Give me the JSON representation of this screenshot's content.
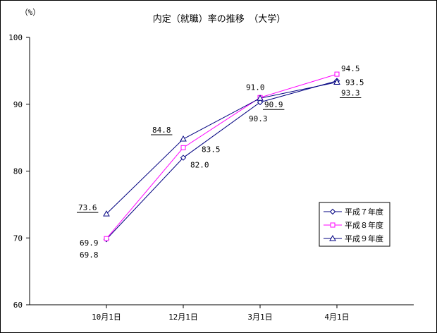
{
  "chart_data": {
    "type": "line",
    "title": "内定（就職）率の推移　（大学）",
    "ylabel": "（%）",
    "xlabel": "",
    "categories": [
      "10月1日",
      "12月1日",
      "3月1日",
      "4月1日"
    ],
    "ylim": [
      60,
      100
    ],
    "yticks": [
      "60",
      "70",
      "80",
      "90",
      "100"
    ],
    "grid": false,
    "legend_position": "right-lower",
    "series": [
      {
        "name": "平成７年度",
        "marker": "diamond",
        "color": "#000080",
        "values": [
          69.8,
          82.0,
          90.3,
          93.5
        ],
        "labels": [
          "69.8",
          "82.0",
          "90.3",
          "93.5"
        ]
      },
      {
        "name": "平成８年度",
        "marker": "square",
        "color": "#ff00ff",
        "values": [
          69.9,
          83.5,
          91.0,
          94.5
        ],
        "labels": [
          "69.9",
          "83.5",
          "91.0",
          "94.5"
        ]
      },
      {
        "name": "平成９年度",
        "marker": "triangle",
        "color": "#000080",
        "values": [
          73.6,
          84.8,
          90.9,
          93.3
        ],
        "labels": [
          "73.6",
          "84.8",
          "90.9",
          "93.3"
        ],
        "underlined": true
      }
    ]
  }
}
